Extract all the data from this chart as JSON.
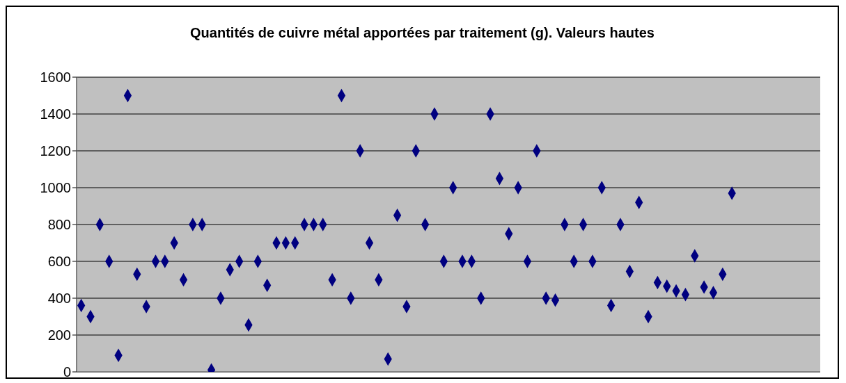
{
  "chart_data": {
    "type": "scatter",
    "title": "Quantités de cuivre métal apportées par traitement (g). Valeurs hautes",
    "categories": [
      null,
      null,
      null,
      null,
      null,
      null,
      null,
      null,
      null,
      null,
      null,
      null,
      null,
      null,
      null,
      null,
      null,
      null,
      null,
      null,
      null,
      null,
      null,
      null,
      null,
      null,
      null,
      null,
      null,
      null,
      null,
      null,
      null,
      null,
      null,
      null,
      null,
      null,
      null,
      null,
      null,
      null,
      null,
      null,
      null,
      null,
      null,
      null,
      null,
      null,
      null,
      null,
      null,
      null,
      null,
      null,
      null,
      null,
      null,
      null,
      null,
      null,
      null,
      null,
      null,
      null,
      null,
      null,
      null,
      null,
      null,
      null,
      null,
      null,
      null,
      null,
      null,
      null,
      null,
      null
    ],
    "series": [
      {
        "color": "#000080",
        "values": [
          360,
          300,
          800,
          600,
          90,
          1500,
          530,
          355,
          600,
          600,
          700,
          500,
          800,
          800,
          10,
          400,
          555,
          600,
          255,
          600,
          470,
          700,
          700,
          700,
          800,
          800,
          800,
          500,
          1500,
          400,
          1200,
          700,
          500,
          70,
          850,
          355,
          1200,
          800,
          1400,
          600,
          1000,
          600,
          600,
          400,
          1400,
          1050,
          750,
          1000,
          600,
          1200,
          400,
          390,
          800,
          600,
          800,
          600,
          1000,
          360,
          800,
          545,
          920,
          300,
          485,
          465,
          440,
          420,
          630,
          460,
          430,
          530,
          970,
          null,
          null,
          null,
          null,
          null,
          null,
          null,
          null,
          null
        ]
      }
    ],
    "ylim": [
      0,
      1600
    ],
    "yticks": [
      0,
      200,
      400,
      600,
      800,
      1000,
      1200,
      1400,
      1600
    ],
    "grid": "y",
    "legend": false,
    "marker": "diamond"
  }
}
